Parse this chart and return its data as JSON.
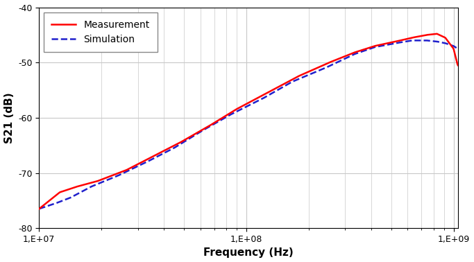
{
  "title": "",
  "xlabel": "Frequency (Hz)",
  "ylabel": "S21 (dB)",
  "xlim_log": [
    10000000.0,
    1050000000.0
  ],
  "ylim": [
    -80,
    -40
  ],
  "yticks": [
    -80,
    -70,
    -60,
    -50,
    -40
  ],
  "xticks_log": [
    10000000.0,
    100000000.0,
    1000000000.0
  ],
  "xtick_labels": [
    "1,E+07",
    "1,E+08",
    "1,E+09"
  ],
  "grid_color": "#c8c8c8",
  "background_color": "#ffffff",
  "measurement_color": "#ff0000",
  "simulation_color": "#2020cc",
  "measurement_label": "Measurement",
  "simulation_label": "Simulation",
  "measurement_linewidth": 1.8,
  "simulation_linewidth": 1.8,
  "legend_fontsize": 10,
  "axis_fontsize": 11,
  "meas_key_x": [
    7.0,
    7.1,
    7.18,
    7.28,
    7.42,
    7.55,
    7.68,
    7.82,
    7.95,
    8.1,
    8.25,
    8.4,
    8.52,
    8.62,
    8.72,
    8.8,
    8.87,
    8.92,
    8.96,
    9.0,
    9.02
  ],
  "meas_key_y": [
    -76.5,
    -73.5,
    -72.5,
    -71.5,
    -69.5,
    -67.0,
    -64.5,
    -61.5,
    -58.5,
    -55.5,
    -52.5,
    -50.0,
    -48.2,
    -47.0,
    -46.2,
    -45.5,
    -45.0,
    -44.8,
    -45.5,
    -47.5,
    -50.5
  ],
  "sim_key_x": [
    7.0,
    7.08,
    7.15,
    7.25,
    7.38,
    7.52,
    7.65,
    7.78,
    7.92,
    8.08,
    8.22,
    8.38,
    8.52,
    8.62,
    8.72,
    8.8,
    8.87,
    8.92,
    8.96,
    9.0,
    9.02
  ],
  "sim_key_y": [
    -76.5,
    -75.5,
    -74.5,
    -72.5,
    -70.5,
    -68.0,
    -65.5,
    -62.5,
    -59.5,
    -56.5,
    -53.5,
    -51.0,
    -48.5,
    -47.2,
    -46.5,
    -46.0,
    -46.0,
    -46.2,
    -46.5,
    -47.0,
    -47.5
  ]
}
